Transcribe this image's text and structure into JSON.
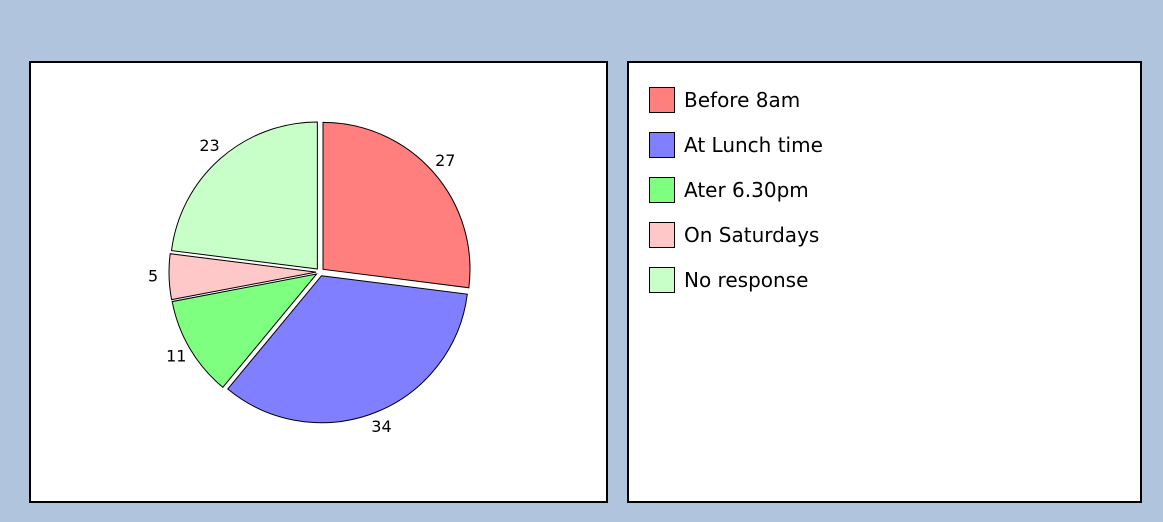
{
  "chart_data": {
    "type": "pie",
    "categories": [
      "Before 8am",
      "At Lunch time",
      "Ater 6.30pm",
      "On Saturdays",
      "No response"
    ],
    "values": [
      27,
      34,
      11,
      5,
      23
    ],
    "colors": [
      "#ff7f7f",
      "#7f7fff",
      "#7fff7f",
      "#ffc8c8",
      "#c8ffc8"
    ]
  }
}
